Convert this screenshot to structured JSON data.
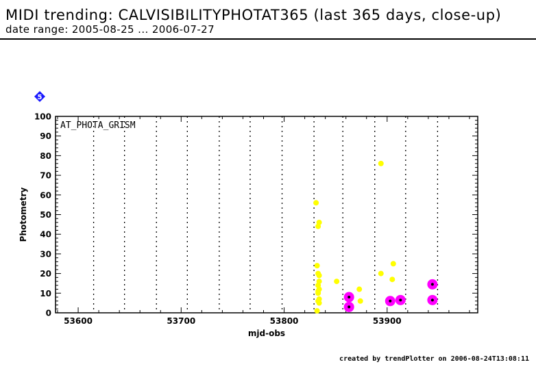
{
  "header": {
    "title": "MIDI trending: CALVISIBILITYPHOTAT365 (last 365 days, close-up)",
    "subtitle": "date range: 2005-08-25 ... 2006-07-27"
  },
  "footer": {
    "credit": "created by trendPlotter on 2006-08-24T13:08:11"
  },
  "colors": {
    "normal": "#ffff00",
    "highlight": "#ff00ff",
    "marker_fill": "#1a1aff"
  },
  "chart_data": {
    "type": "scatter",
    "marker_label": "5",
    "annotation": "AT_PHOTA_GRISM",
    "xlabel": "mjd-obs",
    "ylabel": "Photometry",
    "xlim": [
      53578,
      53988
    ],
    "ylim": [
      0,
      100
    ],
    "x_ticks": [
      53600,
      53700,
      53800,
      53900
    ],
    "y_ticks": [
      0,
      10,
      20,
      30,
      40,
      50,
      60,
      70,
      80,
      90,
      100
    ],
    "vertical_dotted_lines": [
      53615,
      53645,
      53676,
      53706,
      53737,
      53767,
      53798,
      53829,
      53857,
      53888,
      53918,
      53949
    ],
    "grid": false,
    "series": [
      {
        "points": [
          [
            53831,
            56
          ],
          [
            53833,
            44
          ],
          [
            53834,
            46
          ],
          [
            53832,
            24
          ],
          [
            53833,
            20
          ],
          [
            53834,
            19
          ],
          [
            53834,
            16
          ],
          [
            53833,
            14
          ],
          [
            53834,
            12
          ],
          [
            53833,
            11
          ],
          [
            53833,
            10
          ],
          [
            53834,
            7
          ],
          [
            53833,
            6
          ],
          [
            53834,
            5
          ],
          [
            53832,
            1
          ],
          [
            53851,
            16
          ],
          [
            53873,
            12
          ],
          [
            53874,
            6
          ],
          [
            53894,
            76
          ],
          [
            53894,
            20
          ],
          [
            53905,
            17
          ],
          [
            53906,
            25
          ]
        ]
      },
      {
        "highlight": true,
        "points": [
          [
            53863,
            8
          ],
          [
            53863,
            3
          ],
          [
            53903,
            6
          ],
          [
            53913,
            6.5
          ],
          [
            53944,
            14.5
          ],
          [
            53944,
            6.5
          ]
        ]
      }
    ]
  }
}
